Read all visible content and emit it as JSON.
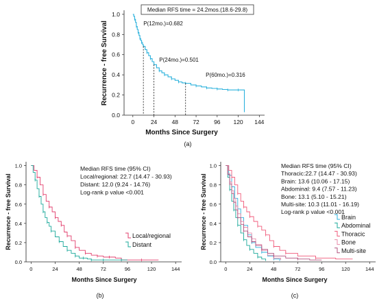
{
  "chart_data": [
    {
      "type": "line",
      "panel_label": "(a)",
      "title": "",
      "xlabel": "Months Since Surgery",
      "ylabel": "Recurrence - free Survival",
      "xlim": [
        -10,
        150
      ],
      "ylim": [
        0,
        1.04
      ],
      "xticks": [
        "0",
        "24",
        "48",
        "72",
        "96",
        "120",
        "144"
      ],
      "yticks": [
        "0.0",
        "0.2",
        "0.4",
        "0.6",
        "0.8",
        "1.0"
      ],
      "box_text": "Median RFS time = 24.2mos.(18.6-29.8)",
      "annotations": [
        {
          "text": "P(12mo.)=0.682",
          "x": 12,
          "y": 0.682,
          "text_at": [
            12,
            0.89
          ]
        },
        {
          "text": "P(24mo.)=0.501",
          "x": 24,
          "y": 0.501,
          "text_at": [
            30,
            0.53
          ]
        },
        {
          "text": "P(60mo.)=0.316",
          "x": 60,
          "y": 0.316,
          "text_at": [
            83,
            0.38
          ]
        }
      ],
      "series": [
        {
          "color": "#2ab1dc",
          "x": [
            0,
            1,
            2,
            3,
            4,
            5,
            6,
            7,
            8,
            9,
            10,
            11,
            12,
            14,
            16,
            18,
            20,
            22,
            24,
            27,
            30,
            33,
            36,
            40,
            44,
            48,
            52,
            56,
            60,
            66,
            72,
            78,
            84,
            90,
            96,
            102,
            108,
            114,
            120,
            126,
            127
          ],
          "y": [
            1.0,
            0.98,
            0.95,
            0.92,
            0.88,
            0.85,
            0.82,
            0.79,
            0.76,
            0.74,
            0.72,
            0.7,
            0.682,
            0.65,
            0.62,
            0.59,
            0.56,
            0.53,
            0.501,
            0.47,
            0.44,
            0.42,
            0.4,
            0.38,
            0.36,
            0.345,
            0.33,
            0.32,
            0.316,
            0.3,
            0.29,
            0.28,
            0.27,
            0.265,
            0.26,
            0.255,
            0.25,
            0.25,
            0.25,
            0.25,
            0.03
          ]
        }
      ]
    },
    {
      "type": "line",
      "panel_label": "(b)",
      "title": "",
      "xlabel": "Months Since Surgery",
      "ylabel": "Recurrence - free Survival",
      "xlim": [
        -5,
        150
      ],
      "ylim": [
        0,
        1.04
      ],
      "xticks": [
        "0",
        "24",
        "48",
        "72",
        "96",
        "120",
        "144"
      ],
      "yticks": [
        "0.0",
        "0.2",
        "0.4",
        "0.6",
        "0.8",
        "1.0"
      ],
      "text_lines": [
        "Median RFS time (95% CI)",
        "Local/regional: 22.7 (14.47 - 30.93)",
        "Distant: 12.0 (9.24 - 14.76)",
        "Log-rank p value <0.001"
      ],
      "legend_position": "lower-right",
      "series": [
        {
          "name": "Local/regional",
          "color": "#e23d6b",
          "x": [
            0,
            3,
            6,
            9,
            12,
            15,
            18,
            21,
            24,
            27,
            30,
            33,
            36,
            40,
            44,
            48,
            54,
            60,
            66,
            72,
            78,
            84,
            90,
            100,
            110,
            120,
            127
          ],
          "y": [
            1.0,
            0.95,
            0.88,
            0.8,
            0.7,
            0.63,
            0.57,
            0.52,
            0.46,
            0.42,
            0.38,
            0.31,
            0.27,
            0.22,
            0.15,
            0.12,
            0.09,
            0.07,
            0.06,
            0.05,
            0.05,
            0.04,
            0.02,
            0.02,
            0.02,
            0.02,
            0.02
          ]
        },
        {
          "name": "Distant",
          "color": "#1aa89a",
          "x": [
            0,
            2,
            4,
            6,
            8,
            10,
            12,
            14,
            16,
            18,
            20,
            24,
            28,
            32,
            36,
            40,
            44,
            48,
            52,
            56,
            60,
            66,
            72,
            80,
            90,
            96
          ],
          "y": [
            1.0,
            0.93,
            0.85,
            0.76,
            0.68,
            0.6,
            0.52,
            0.46,
            0.41,
            0.37,
            0.32,
            0.26,
            0.21,
            0.16,
            0.12,
            0.09,
            0.06,
            0.04,
            0.04,
            0.03,
            0.02,
            0.02,
            0.02,
            0.02,
            0.02,
            0.02
          ]
        }
      ]
    },
    {
      "type": "line",
      "panel_label": "(c)",
      "title": "",
      "xlabel": "Months Since Surgery",
      "ylabel": "Recurrence - free Survival",
      "xlim": [
        -5,
        150
      ],
      "ylim": [
        0,
        1.04
      ],
      "xticks": [
        "0",
        "24",
        "48",
        "72",
        "96",
        "120",
        "144"
      ],
      "yticks": [
        "0.0",
        "0.2",
        "0.4",
        "0.6",
        "0.8",
        "1.0"
      ],
      "text_lines": [
        "Median RFS time (95% CI)",
        "Thoracic:22.7 (14.47 - 30.93)",
        "Brain: 13.6 (10.06 - 17.15)",
        "Abdominal: 9.4 (7.57 - 11.23)",
        "Bone: 13.1 (5.10 - 15.21)",
        "Multi-site: 10.3 (11.01 - 16.19)",
        "Log-rank p value <0.001"
      ],
      "legend_position": "lower-right",
      "series": [
        {
          "name": "Brain",
          "color": "#2ab1dc",
          "x": [
            0,
            3,
            6,
            9,
            12,
            15,
            18,
            22,
            26,
            30,
            36,
            42,
            48,
            54
          ],
          "y": [
            1.0,
            0.9,
            0.78,
            0.66,
            0.55,
            0.46,
            0.38,
            0.28,
            0.2,
            0.15,
            0.1,
            0.06,
            0.03,
            0.01
          ]
        },
        {
          "name": "Abdominal",
          "color": "#1aa89a",
          "x": [
            0,
            2,
            4,
            6,
            8,
            10,
            12,
            15,
            18,
            21,
            24,
            28,
            32,
            36,
            40
          ],
          "y": [
            1.0,
            0.88,
            0.75,
            0.63,
            0.54,
            0.46,
            0.38,
            0.3,
            0.23,
            0.17,
            0.13,
            0.09,
            0.05,
            0.03,
            0.01
          ]
        },
        {
          "name": "Thoracic",
          "color": "#f05a7a",
          "x": [
            0,
            3,
            6,
            9,
            12,
            15,
            18,
            21,
            24,
            28,
            32,
            36,
            40,
            44,
            48,
            54,
            60,
            72,
            90,
            110,
            127
          ],
          "y": [
            1.0,
            0.95,
            0.88,
            0.8,
            0.71,
            0.63,
            0.57,
            0.52,
            0.47,
            0.42,
            0.37,
            0.33,
            0.28,
            0.22,
            0.16,
            0.12,
            0.09,
            0.06,
            0.04,
            0.03,
            0.03
          ]
        },
        {
          "name": "Bone",
          "color": "#e88aa8",
          "x": [
            0,
            2,
            4,
            6,
            8,
            10,
            12,
            15,
            18,
            22,
            26,
            30,
            36,
            42,
            48,
            55
          ],
          "y": [
            1.0,
            0.92,
            0.83,
            0.74,
            0.66,
            0.58,
            0.5,
            0.42,
            0.36,
            0.3,
            0.24,
            0.18,
            0.12,
            0.07,
            0.04,
            0.02
          ]
        },
        {
          "name": "Multi-site",
          "color": "#b0527e",
          "x": [
            0,
            2,
            4,
            6,
            8,
            10,
            12,
            15,
            18,
            22,
            26,
            30,
            36,
            42,
            48,
            60,
            72,
            84,
            96
          ],
          "y": [
            1.0,
            0.91,
            0.81,
            0.71,
            0.62,
            0.54,
            0.46,
            0.39,
            0.32,
            0.26,
            0.21,
            0.17,
            0.13,
            0.09,
            0.06,
            0.04,
            0.03,
            0.02,
            0.02
          ]
        }
      ]
    }
  ]
}
